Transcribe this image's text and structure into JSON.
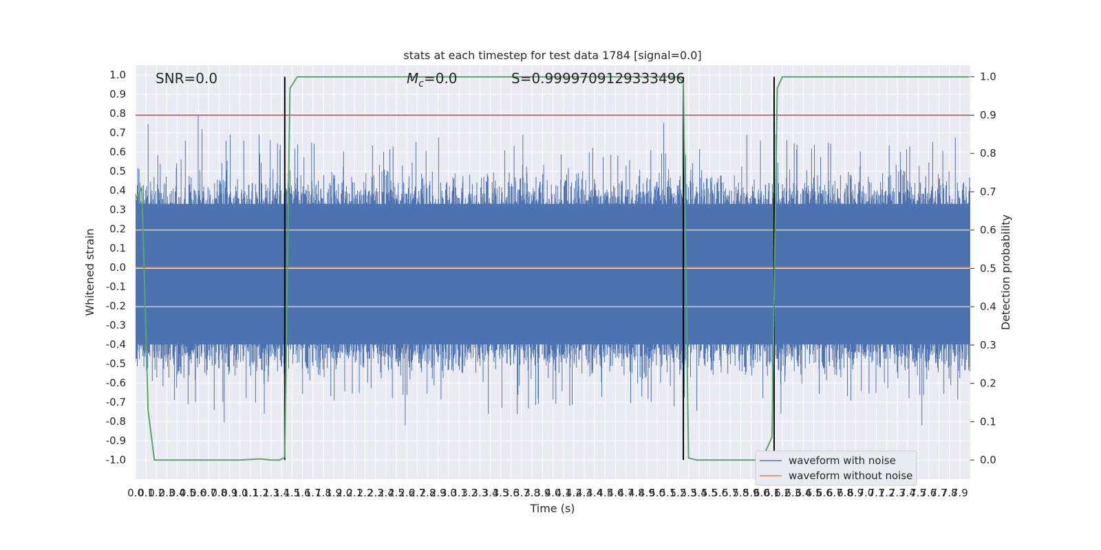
{
  "chart_data": {
    "type": "line",
    "title": "stats at each timestep for test data 1784 [signal=0.0]",
    "xlabel": "Time (s)",
    "ylabel_left": "Whitened strain",
    "ylabel_right": "Detection probability",
    "xlim": [
      0.0,
      8.0
    ],
    "ylim_left": [
      -1.1,
      1.05
    ],
    "ylim_right": [
      -0.05,
      1.03
    ],
    "x_ticks": [
      "0.0",
      "0.1",
      "0.2",
      "0.3",
      "0.4",
      "0.5",
      "0.6",
      "0.7",
      "0.8",
      "0.9",
      "1.0",
      "1.1",
      "1.2",
      "1.3",
      "1.4",
      "1.5",
      "1.6",
      "1.7",
      "1.8",
      "1.9",
      "2.0",
      "2.1",
      "2.2",
      "2.3",
      "2.4",
      "2.5",
      "2.6",
      "2.7",
      "2.8",
      "2.9",
      "3.0",
      "3.1",
      "3.2",
      "3.3",
      "3.4",
      "3.5",
      "3.6",
      "3.7",
      "3.8",
      "3.9",
      "4.0",
      "4.1",
      "4.2",
      "4.3",
      "4.4",
      "4.5",
      "4.6",
      "4.7",
      "4.8",
      "4.9",
      "5.0",
      "5.1",
      "5.2",
      "5.3",
      "5.4",
      "5.5",
      "5.6",
      "5.7",
      "5.8",
      "5.9",
      "6.0",
      "6.1",
      "6.2",
      "6.3",
      "6.4",
      "6.5",
      "6.6",
      "6.7",
      "6.8",
      "6.9",
      "7.0",
      "7.1",
      "7.2",
      "7.3",
      "7.4",
      "7.5",
      "7.6",
      "7.7",
      "7.8",
      "7.9"
    ],
    "y_ticks_left": [
      "1.0",
      "0.9",
      "0.8",
      "0.7",
      "0.6",
      "0.5",
      "0.4",
      "0.3",
      "0.2",
      "0.1",
      "0.0",
      "-0.1",
      "-0.2",
      "-0.3",
      "-0.4",
      "-0.5",
      "-0.6",
      "-0.7",
      "-0.8",
      "-0.9",
      "-1.0"
    ],
    "y_ticks_right": [
      "1.0",
      "0.9",
      "0.8",
      "0.7",
      "0.6",
      "0.5",
      "0.4",
      "0.3",
      "0.2",
      "0.1",
      "0.0"
    ],
    "annotations": {
      "snr": "SNR=0.0",
      "mc": "=0.0",
      "mc_symbol": "M",
      "mc_sub": "c",
      "s": "S=0.9999709129333496"
    },
    "series": [
      {
        "name": "waveform with noise",
        "color": "#4c72b0",
        "type": "noise",
        "note_amplitude_envelope": [
          0.35,
          -0.42
        ]
      },
      {
        "name": "waveform without noise",
        "color": "#dd8452",
        "values_constant": 0.0
      }
    ],
    "detection_probability": {
      "color": "#55a868",
      "x": [
        0.0,
        0.06,
        0.12,
        0.18,
        0.5,
        1.0,
        1.2,
        1.3,
        1.38,
        1.43,
        1.48,
        1.55,
        4.0,
        5.2,
        5.25,
        5.3,
        5.38,
        5.6,
        5.75,
        6.0,
        6.1,
        6.15,
        6.2,
        7.99
      ],
      "y": [
        0.68,
        0.71,
        0.13,
        0.0,
        0.0,
        0.0,
        0.003,
        0.0,
        0.0,
        0.007,
        0.97,
        1.0,
        1.0,
        1.0,
        0.985,
        0.005,
        0.0,
        0.0,
        0.0,
        0.0,
        0.06,
        0.97,
        1.0,
        1.0
      ]
    },
    "threshold": {
      "value": 0.9,
      "axis": "right",
      "color": "#c44e52"
    },
    "vertical_markers": [
      1.43,
      5.25,
      6.12
    ],
    "legend": {
      "placement": "lower-right",
      "entries": [
        "waveform with noise",
        "waveform without noise"
      ]
    },
    "grid": true
  }
}
